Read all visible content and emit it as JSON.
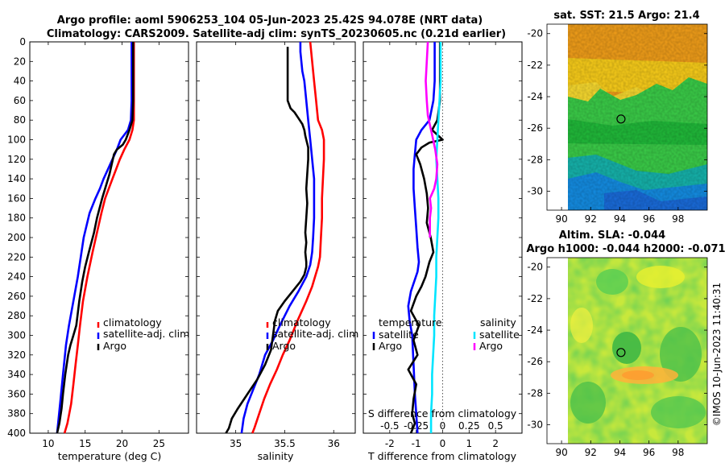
{
  "header": {
    "title_line1": "Argo profile: aoml 5906253_104 05-Jun-2023 25.42S 94.078E (NRT data)",
    "title_line2": "Climatology: CARS2009. Satellite-adj clim: synTS_20230605.nc (0.21d earlier)"
  },
  "credit": "©IMOS 10-Jun-2023 11:40:31",
  "colors": {
    "climatology": "#ff0000",
    "satellite": "#0000ff",
    "argo": "#000000",
    "sat_salinity": "#00e5ff",
    "argo_salinity": "#ff00ff",
    "zero_line": "#555555"
  },
  "chart_data": [
    {
      "type": "line",
      "id": "temperature",
      "xlabel": "temperature (deg C)",
      "xlim": [
        7.5,
        29
      ],
      "xticks": [
        10,
        15,
        20,
        25
      ],
      "ylim": [
        0,
        400
      ],
      "yticks": [
        0,
        20,
        40,
        60,
        80,
        100,
        120,
        140,
        160,
        180,
        200,
        220,
        240,
        260,
        280,
        300,
        320,
        340,
        360,
        380,
        400
      ],
      "y_reversed": true,
      "legend": [
        "climatology",
        "satellite-adj. clim",
        "Argo"
      ],
      "legend_position": "lower-right",
      "series": [
        {
          "name": "climatology",
          "color": "climatology",
          "x": [
            21.6,
            21.6,
            21.6,
            21.6,
            21.6,
            21.4,
            21.0,
            20.3,
            19.7,
            19.2,
            18.7,
            18.2,
            17.7,
            17.2,
            16.6,
            16.0,
            15.3,
            14.7,
            14.3,
            14.0,
            13.7,
            13.4,
            13.1,
            12.6,
            12.2
          ],
          "y": [
            0,
            20,
            40,
            60,
            80,
            90,
            100,
            110,
            120,
            130,
            140,
            150,
            160,
            175,
            195,
            215,
            240,
            265,
            290,
            310,
            330,
            350,
            370,
            390,
            400
          ]
        },
        {
          "name": "satellite-adj. clim",
          "color": "satellite",
          "x": [
            21.3,
            21.3,
            21.3,
            21.3,
            21.2,
            20.8,
            19.8,
            19.3,
            18.7,
            18.1,
            17.5,
            17.0,
            16.4,
            15.6,
            14.8,
            14.0,
            13.4,
            12.8,
            12.4,
            12.0,
            11.6,
            11.2
          ],
          "y": [
            0,
            20,
            40,
            60,
            80,
            90,
            100,
            110,
            120,
            130,
            140,
            150,
            160,
            175,
            200,
            240,
            265,
            290,
            310,
            340,
            370,
            400
          ]
        },
        {
          "name": "Argo",
          "color": "argo",
          "x": [
            21.5,
            21.5,
            21.5,
            21.5,
            21.4,
            21.0,
            20.5,
            20.1,
            19.3,
            18.9,
            18.6,
            18.3,
            17.9,
            17.3,
            16.6,
            16.2,
            15.5,
            15.0,
            14.6,
            14.2,
            13.8,
            13.4,
            13.0,
            12.7,
            12.3,
            12.0,
            11.8,
            11.5,
            11.2
          ],
          "y": [
            0,
            20,
            40,
            60,
            80,
            90,
            100,
            105,
            110,
            115,
            125,
            135,
            145,
            160,
            180,
            195,
            215,
            230,
            245,
            265,
            290,
            300,
            310,
            320,
            340,
            360,
            375,
            390,
            400
          ]
        }
      ]
    },
    {
      "type": "line",
      "id": "salinity",
      "xlabel": "salinity",
      "xlim": [
        34.6,
        36.22
      ],
      "xticks": [
        35,
        35.5,
        36
      ],
      "xtick_labels": [
        "35",
        "35.5",
        "36"
      ],
      "ylim": [
        0,
        400
      ],
      "y_reversed": true,
      "legend": [
        "climatology",
        "satellite-adj. clim",
        "Argo"
      ],
      "legend_position": "lower-right",
      "series": [
        {
          "name": "climatology",
          "color": "climatology",
          "x": [
            35.76,
            35.78,
            35.8,
            35.82,
            35.84,
            35.88,
            35.9,
            35.9,
            35.89,
            35.88,
            35.88,
            35.87,
            35.86,
            35.84,
            35.81,
            35.78,
            35.72,
            35.63,
            35.55,
            35.48,
            35.42,
            35.35,
            35.29,
            35.24,
            35.19,
            35.17
          ],
          "y": [
            0,
            20,
            40,
            60,
            80,
            90,
            100,
            120,
            140,
            160,
            180,
            200,
            220,
            230,
            240,
            250,
            265,
            285,
            305,
            320,
            335,
            350,
            365,
            380,
            395,
            400
          ]
        },
        {
          "name": "satellite-adj. clim",
          "color": "satellite",
          "x": [
            35.66,
            35.66,
            35.67,
            35.68,
            35.7,
            35.72,
            35.74,
            35.76,
            35.78,
            35.8,
            35.8,
            35.8,
            35.79,
            35.78,
            35.76,
            35.72,
            35.64,
            35.55,
            35.45,
            35.38,
            35.3,
            35.24,
            35.18,
            35.12,
            35.08,
            35.06
          ],
          "y": [
            0,
            10,
            20,
            30,
            40,
            60,
            80,
            100,
            120,
            140,
            160,
            180,
            200,
            215,
            228,
            240,
            255,
            270,
            290,
            305,
            320,
            340,
            355,
            370,
            385,
            400
          ]
        },
        {
          "name": "Argo",
          "color": "argo",
          "x": [
            35.53,
            35.53,
            35.53,
            35.53,
            35.56,
            35.6,
            35.64,
            35.68,
            35.7,
            35.71,
            35.72,
            35.74,
            35.74,
            35.73,
            35.72,
            35.73,
            35.72,
            35.71,
            35.72,
            35.71,
            35.72,
            35.72,
            35.7,
            35.66,
            35.58,
            35.5,
            35.43,
            35.4,
            35.38,
            35.36,
            35.3,
            35.22,
            35.12,
            35.02,
            34.96,
            34.93,
            34.9
          ],
          "y": [
            5,
            20,
            40,
            60,
            68,
            72,
            78,
            84,
            90,
            96,
            100,
            108,
            120,
            135,
            150,
            165,
            180,
            195,
            205,
            215,
            225,
            230,
            238,
            245,
            255,
            265,
            275,
            285,
            300,
            315,
            330,
            345,
            360,
            375,
            385,
            395,
            400
          ]
        }
      ]
    },
    {
      "type": "line",
      "id": "difference",
      "xlabel": "T difference from climatology",
      "xlim": [
        -3,
        3
      ],
      "xticks": [
        -2,
        -1,
        0,
        1,
        2
      ],
      "secondary_xlabel": "S difference from climatology",
      "secondary_xlim": [
        -0.75,
        0.75
      ],
      "secondary_xticks": [
        -0.5,
        -0.25,
        0,
        0.25,
        0.5
      ],
      "secondary_xtick_labels": [
        "-0.5",
        "-0.25",
        "0",
        "0.25",
        "0.5"
      ],
      "zero_line": "dotted",
      "ylim": [
        0,
        400
      ],
      "y_reversed": true,
      "legend_groups": [
        {
          "title": "temperature",
          "entries": [
            "satellite",
            "Argo"
          ]
        },
        {
          "title": "salinity",
          "entries": [
            "satellite",
            "Argo"
          ]
        }
      ],
      "series": [
        {
          "name": "temperature satellite",
          "color": "satellite",
          "axis": "T",
          "x": [
            -0.3,
            -0.3,
            -0.3,
            -0.35,
            -0.5,
            -0.8,
            -1.0,
            -1.05,
            -1.1,
            -1.1,
            -1.05,
            -1.0,
            -0.95,
            -0.9,
            -0.95,
            -1.2,
            -1.3,
            -1.25,
            -1.15,
            -1.1,
            -1.05,
            -1.0,
            -0.95
          ],
          "y": [
            0,
            20,
            40,
            60,
            80,
            90,
            100,
            115,
            130,
            150,
            170,
            190,
            210,
            225,
            235,
            255,
            270,
            285,
            300,
            330,
            360,
            380,
            400
          ]
        },
        {
          "name": "temperature Argo",
          "color": "argo",
          "x": [
            -0.1,
            -0.1,
            -0.1,
            -0.1,
            -0.2,
            -0.4,
            0.0,
            -0.5,
            -0.8,
            -1.0,
            -0.85,
            -0.7,
            -0.6,
            -0.55,
            -0.6,
            -0.45,
            -0.35,
            -0.5,
            -0.65,
            -0.8,
            -1.0,
            -1.2,
            -0.9,
            -1.1,
            -0.95,
            -1.3,
            -1.0,
            -1.1,
            -1.15,
            -1.05,
            -1.2
          ],
          "y": [
            0,
            20,
            40,
            60,
            80,
            90,
            100,
            103,
            108,
            115,
            125,
            140,
            155,
            170,
            185,
            200,
            215,
            225,
            240,
            250,
            260,
            275,
            290,
            305,
            320,
            335,
            350,
            365,
            380,
            390,
            400
          ]
        },
        {
          "name": "salinity satellite",
          "color": "sat_salinity",
          "axis": "S",
          "x": [
            -0.02,
            -0.02,
            -0.02,
            -0.03,
            -0.04,
            -0.05,
            -0.06,
            -0.05,
            -0.04,
            -0.04,
            -0.05,
            -0.06,
            -0.06,
            -0.07,
            -0.08,
            -0.08,
            -0.09,
            -0.1,
            -0.1,
            -0.11,
            -0.11
          ],
          "y": [
            0,
            20,
            40,
            60,
            80,
            100,
            120,
            140,
            160,
            180,
            200,
            220,
            240,
            260,
            280,
            300,
            320,
            340,
            360,
            380,
            400
          ]
        },
        {
          "name": "salinity Argo",
          "color": "argo_salinity",
          "axis": "S",
          "x": [
            -0.14,
            -0.15,
            -0.16,
            -0.15,
            -0.14,
            -0.12,
            -0.1,
            -0.07,
            -0.05,
            -0.06,
            -0.08,
            -0.1,
            -0.12,
            -0.11,
            -0.12,
            -0.12
          ],
          "y": [
            0,
            20,
            40,
            60,
            75,
            85,
            95,
            110,
            125,
            140,
            150,
            155,
            160,
            170,
            180,
            200
          ]
        }
      ]
    },
    {
      "type": "heatmap",
      "id": "sst_map",
      "title": "sat. SST: 21.5 Argo: 21.4",
      "xlim": [
        89,
        100
      ],
      "ylim": [
        -31.2,
        -19.4
      ],
      "xticks": [
        90,
        92,
        94,
        96,
        98
      ],
      "yticks": [
        -20,
        -22,
        -24,
        -26,
        -28,
        -30
      ],
      "marker": {
        "lon": 94.078,
        "lat": -25.42
      }
    },
    {
      "type": "heatmap",
      "id": "sla_map",
      "title": "Altim. SLA: -0.044",
      "subtitle": "Argo h1000: -0.044 h2000: -0.071",
      "xlim": [
        89,
        100
      ],
      "ylim": [
        -31.2,
        -19.4
      ],
      "xticks": [
        90,
        92,
        94,
        96,
        98
      ],
      "yticks": [
        -20,
        -22,
        -24,
        -26,
        -28,
        -30
      ],
      "marker": {
        "lon": 94.078,
        "lat": -25.42
      }
    }
  ]
}
